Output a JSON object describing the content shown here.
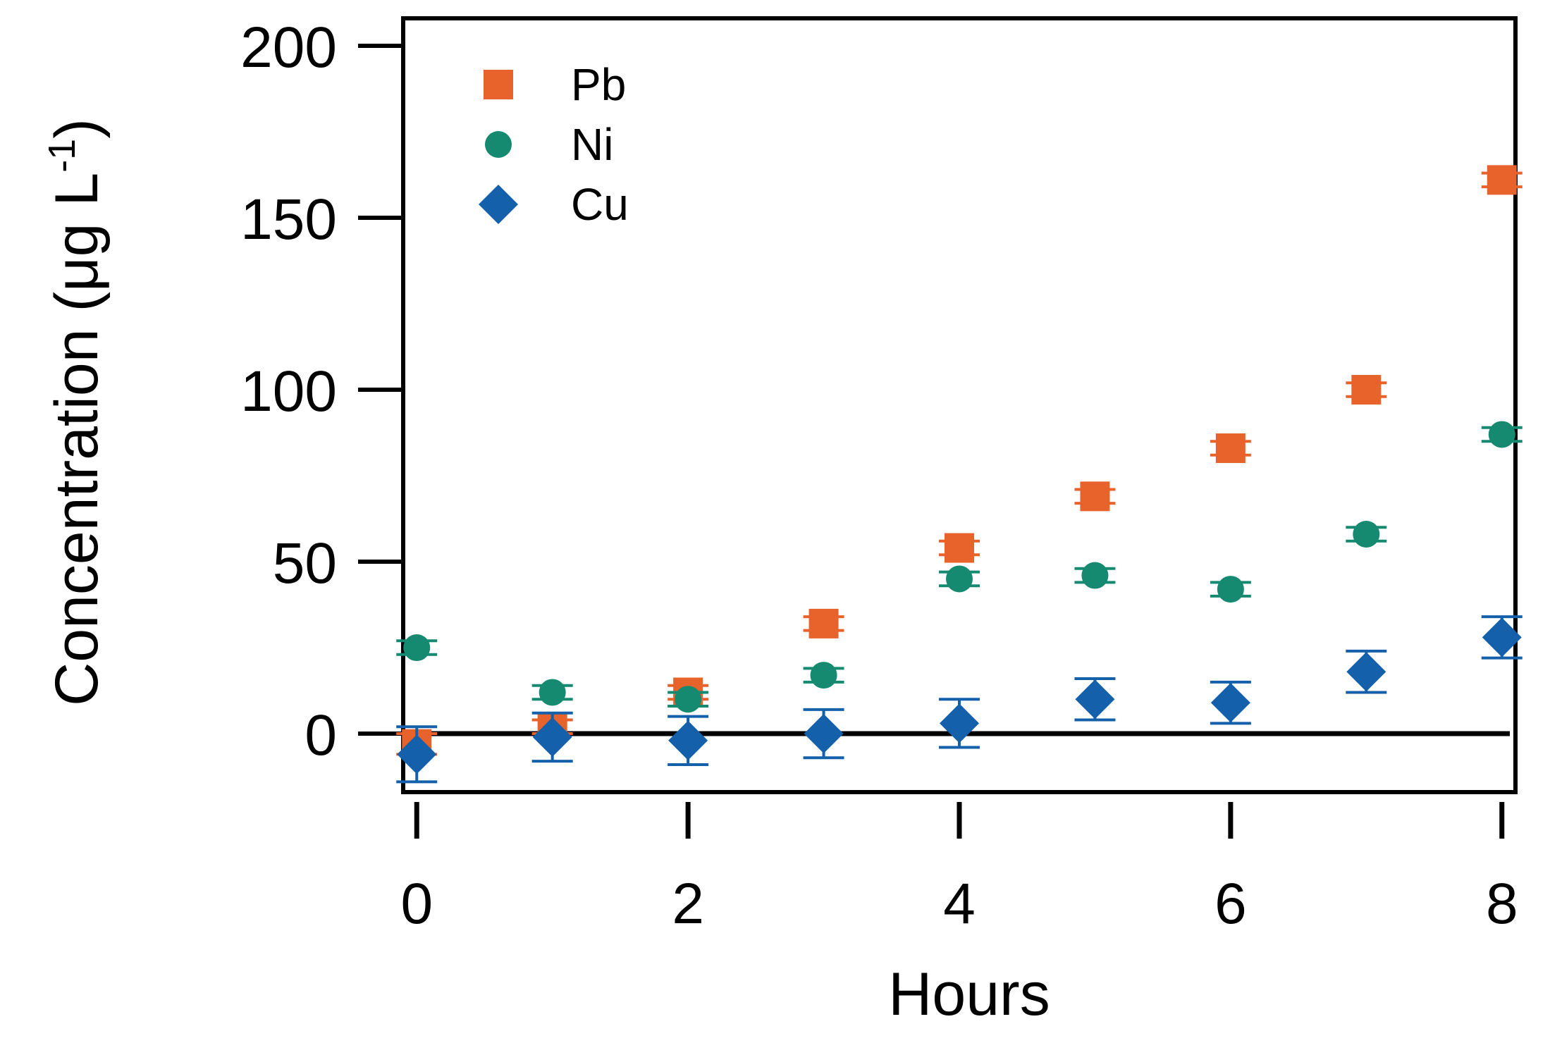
{
  "chart_data": {
    "type": "scatter",
    "title": "",
    "xlabel": "Hours",
    "ylabel": "Concentration (μg L",
    "ylabel_superscript": "-1",
    "ylabel_suffix": ")",
    "xlim": [
      -0.1,
      8.1
    ],
    "ylim": [
      -17,
      208
    ],
    "xticks": [
      0,
      2,
      4,
      6,
      8
    ],
    "yticks": [
      0,
      50,
      100,
      150,
      200
    ],
    "xtick_labels": [
      "0",
      "2",
      "4",
      "6",
      "8"
    ],
    "ytick_labels": [
      "0",
      "50",
      "100",
      "150",
      "200"
    ],
    "grid": false,
    "zero_line": true,
    "legend_position": "top-left",
    "series": [
      {
        "name": "Pb",
        "marker": "square",
        "color": "#e8622c",
        "x": [
          0,
          1,
          2,
          3,
          4,
          5,
          6,
          7,
          8
        ],
        "y": [
          -3,
          2,
          12,
          32,
          54,
          69,
          83,
          100,
          161
        ],
        "err": [
          3,
          2,
          2,
          2,
          2,
          2,
          2,
          2,
          2
        ]
      },
      {
        "name": "Ni",
        "marker": "circle",
        "color": "#158a70",
        "x": [
          0,
          1,
          2,
          3,
          4,
          5,
          6,
          7,
          8
        ],
        "y": [
          25,
          12,
          10,
          17,
          45,
          46,
          42,
          58,
          87
        ],
        "err": [
          2,
          2,
          2,
          2,
          2,
          2,
          2,
          2,
          2
        ]
      },
      {
        "name": "Cu",
        "marker": "diamond",
        "color": "#1460aa",
        "x": [
          0,
          1,
          2,
          3,
          4,
          5,
          6,
          7,
          8
        ],
        "y": [
          -6,
          -1,
          -2,
          0,
          3,
          10,
          9,
          18,
          28
        ],
        "err": [
          8,
          7,
          7,
          7,
          7,
          6,
          6,
          6,
          6
        ]
      }
    ]
  }
}
